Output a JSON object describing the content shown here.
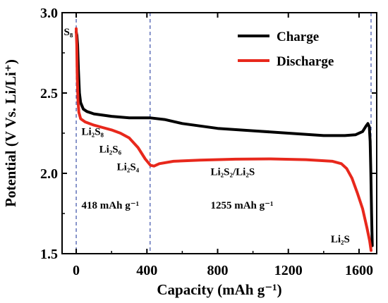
{
  "chart_data": {
    "type": "line",
    "xlabel": "Capacity (mAh g⁻¹)",
    "ylabel": "Potential (V Vs. Li/Li⁺)",
    "xlim": [
      -80,
      1700
    ],
    "ylim": [
      1.5,
      3.0
    ],
    "x_ticks": [
      0,
      400,
      800,
      1200,
      1600
    ],
    "y_ticks": [
      1.5,
      2.0,
      2.5,
      3.0
    ],
    "y_tick_labels": [
      "1.5",
      "2.0",
      "2.5",
      "3.0"
    ],
    "grid": false,
    "legend_position": "top-right",
    "series": [
      {
        "name": "Charge",
        "color": "#000000",
        "points": [
          [
            0,
            2.88
          ],
          [
            4,
            2.86
          ],
          [
            8,
            2.8
          ],
          [
            12,
            2.65
          ],
          [
            18,
            2.5
          ],
          [
            25,
            2.44
          ],
          [
            40,
            2.4
          ],
          [
            60,
            2.385
          ],
          [
            100,
            2.37
          ],
          [
            200,
            2.355
          ],
          [
            300,
            2.345
          ],
          [
            420,
            2.345
          ],
          [
            500,
            2.335
          ],
          [
            600,
            2.31
          ],
          [
            800,
            2.28
          ],
          [
            1000,
            2.265
          ],
          [
            1200,
            2.25
          ],
          [
            1400,
            2.235
          ],
          [
            1520,
            2.235
          ],
          [
            1580,
            2.24
          ],
          [
            1620,
            2.26
          ],
          [
            1640,
            2.295
          ],
          [
            1650,
            2.31
          ],
          [
            1658,
            2.29
          ],
          [
            1663,
            2.2
          ],
          [
            1667,
            2.0
          ],
          [
            1671,
            1.75
          ],
          [
            1675,
            1.55
          ]
        ]
      },
      {
        "name": "Discharge",
        "color": "#e8281c",
        "points": [
          [
            0,
            2.9
          ],
          [
            3,
            2.8
          ],
          [
            6,
            2.6
          ],
          [
            10,
            2.45
          ],
          [
            15,
            2.38
          ],
          [
            25,
            2.34
          ],
          [
            50,
            2.32
          ],
          [
            100,
            2.3
          ],
          [
            150,
            2.285
          ],
          [
            200,
            2.27
          ],
          [
            250,
            2.25
          ],
          [
            300,
            2.22
          ],
          [
            350,
            2.16
          ],
          [
            390,
            2.09
          ],
          [
            420,
            2.05
          ],
          [
            440,
            2.045
          ],
          [
            470,
            2.06
          ],
          [
            550,
            2.075
          ],
          [
            700,
            2.082
          ],
          [
            900,
            2.088
          ],
          [
            1100,
            2.09
          ],
          [
            1300,
            2.085
          ],
          [
            1450,
            2.075
          ],
          [
            1500,
            2.06
          ],
          [
            1530,
            2.03
          ],
          [
            1560,
            1.97
          ],
          [
            1590,
            1.88
          ],
          [
            1620,
            1.78
          ],
          [
            1645,
            1.66
          ],
          [
            1660,
            1.58
          ],
          [
            1668,
            1.52
          ]
        ]
      }
    ],
    "vlines": [
      {
        "x": 0,
        "color": "#3a4fa8"
      },
      {
        "x": 418,
        "color": "#3a4fa8"
      },
      {
        "x": 1668,
        "color": "#3a4fa8"
      }
    ],
    "annotations": [
      {
        "text": "S₈",
        "x": -70,
        "y": 2.86
      },
      {
        "text": "Li₂S₈",
        "x": 30,
        "y": 2.24
      },
      {
        "text": "Li₂S₆",
        "x": 130,
        "y": 2.13
      },
      {
        "text": "Li₂S₄",
        "x": 230,
        "y": 2.02
      },
      {
        "text": "Li₂S₂/Li₂S",
        "x": 760,
        "y": 1.99
      },
      {
        "text": "418 mAh g⁻¹",
        "x": 30,
        "y": 1.78
      },
      {
        "text": "1255 mAh g⁻¹",
        "x": 760,
        "y": 1.78
      },
      {
        "text": "Li₂S",
        "x": 1440,
        "y": 1.57
      }
    ]
  }
}
